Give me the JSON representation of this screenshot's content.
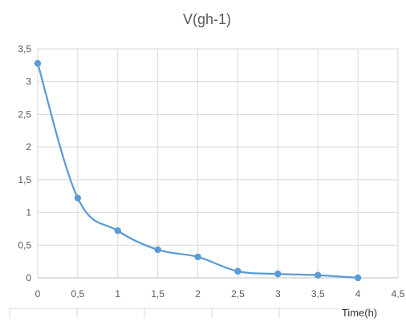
{
  "chart_data": {
    "type": "line",
    "title": "V(gh-1)",
    "xlabel": "Time(h)",
    "ylabel": "",
    "xlim": [
      0,
      4.5
    ],
    "ylim": [
      0,
      3.5
    ],
    "x_ticks": [
      "0",
      "0,5",
      "1",
      "1,5",
      "2",
      "2,5",
      "3",
      "3,5",
      "4",
      "4,5"
    ],
    "y_ticks": [
      "0",
      "0,5",
      "1",
      "1,5",
      "2",
      "2,5",
      "3",
      "3,5"
    ],
    "grid": true,
    "smooth": true,
    "series": [
      {
        "x": [
          0,
          0.5,
          1,
          1.5,
          2,
          2.5,
          3,
          3.5,
          4
        ],
        "y": [
          3.28,
          1.22,
          0.72,
          0.43,
          0.32,
          0.1,
          0.06,
          0.04,
          0.0
        ],
        "color": "#5b9bd5"
      }
    ]
  }
}
